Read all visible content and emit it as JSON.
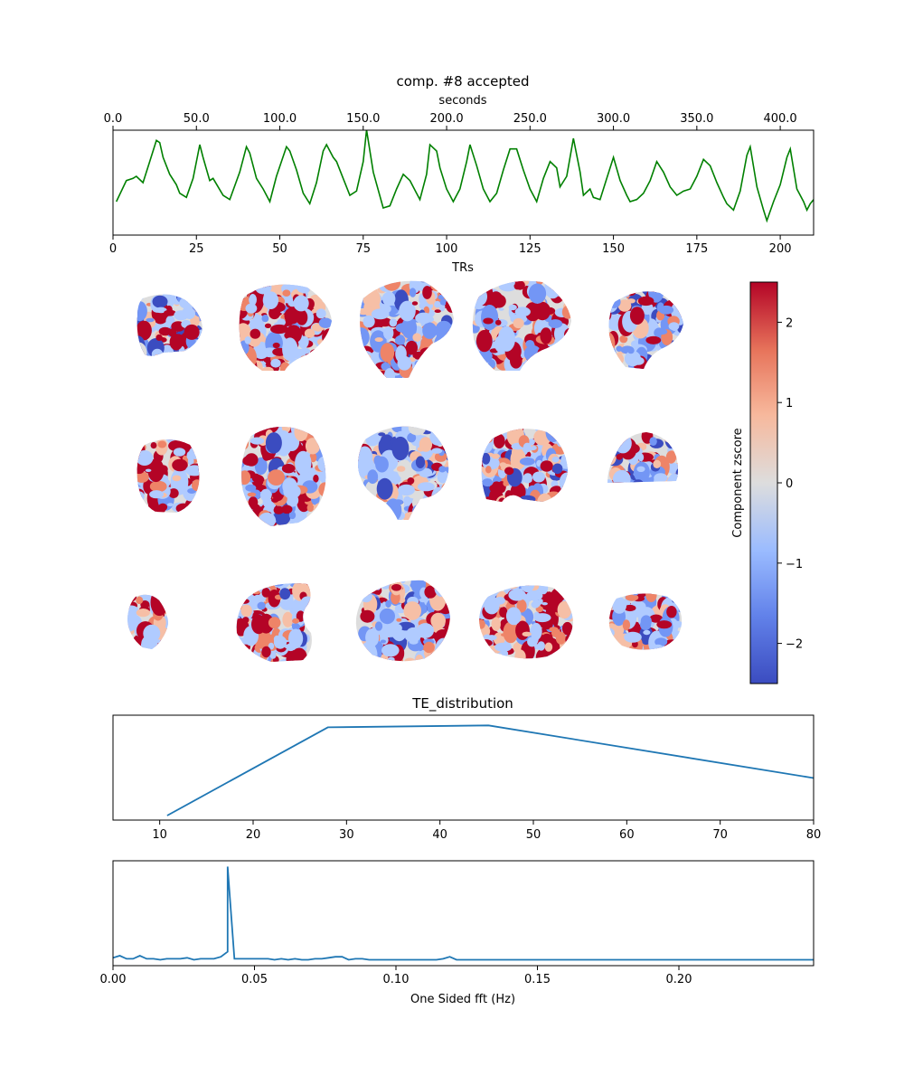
{
  "figure": {
    "title": "comp. #8   accepted"
  },
  "chart_data": [
    {
      "id": "timeseries",
      "type": "line",
      "title": "comp. #8   accepted",
      "xlabel": "TRs",
      "xlabel_top": "seconds",
      "xlim": [
        0,
        210
      ],
      "xlim_top": [
        0,
        420
      ],
      "x_ticks": [
        "0",
        "25",
        "50",
        "75",
        "100",
        "125",
        "150",
        "175",
        "200"
      ],
      "x_tick_values": [
        0,
        25,
        50,
        75,
        100,
        125,
        150,
        175,
        200
      ],
      "top_ticks": [
        "0.0",
        "50.0",
        "100.0",
        "150.0",
        "200.0",
        "250.0",
        "300.0",
        "350.0",
        "400.0"
      ],
      "top_tick_values": [
        0,
        50,
        100,
        150,
        200,
        250,
        300,
        350,
        400
      ],
      "y_ticks": "hidden",
      "ylim": [
        -2.4,
        2.4
      ],
      "color": "#008000",
      "peaks": [
        [
          1,
          -0.9
        ],
        [
          4,
          0.1
        ],
        [
          6,
          0.2
        ],
        [
          7,
          0.3
        ],
        [
          9,
          0.0
        ],
        [
          11,
          1.0
        ],
        [
          13,
          2.0
        ],
        [
          14,
          1.9
        ],
        [
          15,
          1.2
        ],
        [
          17,
          0.4
        ],
        [
          19,
          -0.1
        ],
        [
          20,
          -0.5
        ],
        [
          22,
          -0.7
        ],
        [
          24,
          0.2
        ],
        [
          26,
          1.8
        ],
        [
          27,
          1.2
        ],
        [
          29,
          0.1
        ],
        [
          30,
          0.2
        ],
        [
          33,
          -0.6
        ],
        [
          35,
          -0.8
        ],
        [
          38,
          0.5
        ],
        [
          40,
          1.7
        ],
        [
          41,
          1.4
        ],
        [
          43,
          0.2
        ],
        [
          45,
          -0.3
        ],
        [
          47,
          -0.9
        ],
        [
          49,
          0.3
        ],
        [
          52,
          1.7
        ],
        [
          53,
          1.5
        ],
        [
          55,
          0.6
        ],
        [
          57,
          -0.5
        ],
        [
          59,
          -1.0
        ],
        [
          61,
          0.0
        ],
        [
          63,
          1.5
        ],
        [
          64,
          1.8
        ],
        [
          66,
          1.2
        ],
        [
          67,
          1.0
        ],
        [
          69,
          0.2
        ],
        [
          71,
          -0.6
        ],
        [
          73,
          -0.4
        ],
        [
          75,
          1.0
        ],
        [
          76,
          2.5
        ],
        [
          78,
          0.5
        ],
        [
          81,
          -1.2
        ],
        [
          83,
          -1.1
        ],
        [
          85,
          -0.3
        ],
        [
          87,
          0.4
        ],
        [
          89,
          0.1
        ],
        [
          91,
          -0.5
        ],
        [
          92,
          -0.8
        ],
        [
          94,
          0.4
        ],
        [
          95,
          1.8
        ],
        [
          97,
          1.5
        ],
        [
          98,
          0.7
        ],
        [
          100,
          -0.3
        ],
        [
          102,
          -0.9
        ],
        [
          104,
          -0.3
        ],
        [
          106,
          1.0
        ],
        [
          107,
          1.8
        ],
        [
          109,
          0.8
        ],
        [
          111,
          -0.3
        ],
        [
          113,
          -0.9
        ],
        [
          115,
          -0.5
        ],
        [
          117,
          0.6
        ],
        [
          119,
          1.6
        ],
        [
          121,
          1.6
        ],
        [
          123,
          0.6
        ],
        [
          125,
          -0.3
        ],
        [
          127,
          -0.9
        ],
        [
          129,
          0.2
        ],
        [
          131,
          1.0
        ],
        [
          133,
          0.7
        ],
        [
          134,
          -0.2
        ],
        [
          136,
          0.3
        ],
        [
          138,
          2.1
        ],
        [
          140,
          0.5
        ],
        [
          141,
          -0.6
        ],
        [
          143,
          -0.3
        ],
        [
          144,
          -0.7
        ],
        [
          146,
          -0.8
        ],
        [
          148,
          0.2
        ],
        [
          150,
          1.2
        ],
        [
          152,
          0.1
        ],
        [
          154,
          -0.6
        ],
        [
          155,
          -0.9
        ],
        [
          157,
          -0.8
        ],
        [
          159,
          -0.5
        ],
        [
          161,
          0.1
        ],
        [
          163,
          1.0
        ],
        [
          165,
          0.5
        ],
        [
          167,
          -0.2
        ],
        [
          169,
          -0.6
        ],
        [
          171,
          -0.4
        ],
        [
          173,
          -0.3
        ],
        [
          175,
          0.3
        ],
        [
          177,
          1.1
        ],
        [
          179,
          0.8
        ],
        [
          181,
          0.0
        ],
        [
          183,
          -0.7
        ],
        [
          184,
          -1.0
        ],
        [
          186,
          -1.3
        ],
        [
          188,
          -0.4
        ],
        [
          190,
          1.3
        ],
        [
          191,
          1.7
        ],
        [
          193,
          -0.2
        ],
        [
          195,
          -1.3
        ],
        [
          196,
          -1.8
        ],
        [
          198,
          -0.9
        ],
        [
          200,
          -0.1
        ],
        [
          202,
          1.2
        ],
        [
          203,
          1.6
        ],
        [
          205,
          -0.3
        ],
        [
          207,
          -0.9
        ],
        [
          208,
          -1.3
        ],
        [
          209,
          -1.0
        ],
        [
          210,
          -0.8
        ]
      ]
    },
    {
      "id": "brain_maps",
      "type": "heatmap",
      "colorbar_label": "Component zscore",
      "colorbar_range": [
        -2.5,
        2.5
      ],
      "colorbar_ticks": [
        "−2",
        "−1",
        "0",
        "1",
        "2"
      ],
      "colorbar_tick_values": [
        -2,
        -1,
        0,
        1,
        2
      ],
      "colormap": [
        "#3b4cc0",
        "#7396f5",
        "#b0cbff",
        "#dddddd",
        "#f6bfa6",
        "#ee8468",
        "#b40426"
      ],
      "rows": [
        {
          "view": "sagittal",
          "panels": 5
        },
        {
          "view": "coronal",
          "panels": 5
        },
        {
          "view": "axial",
          "panels": 5
        }
      ]
    },
    {
      "id": "te_distribution",
      "type": "line",
      "title": "TE_distribution",
      "xlim": [
        5,
        80
      ],
      "x_ticks": [
        "10",
        "20",
        "30",
        "40",
        "50",
        "60",
        "70",
        "80"
      ],
      "x_tick_values": [
        10,
        20,
        30,
        40,
        50,
        60,
        70,
        80
      ],
      "y_ticks": "hidden",
      "ylim": [
        0,
        1.05
      ],
      "color": "#1f77b4",
      "points": [
        [
          10.8,
          0.0
        ],
        [
          28.0,
          0.94
        ],
        [
          45.2,
          0.96
        ],
        [
          80.0,
          0.4
        ]
      ]
    },
    {
      "id": "fft",
      "type": "line",
      "xlabel": "One Sided fft (Hz)",
      "xlim": [
        0,
        0.2476
      ],
      "x_ticks": [
        "0.00",
        "0.05",
        "0.10",
        "0.15",
        "0.20"
      ],
      "x_tick_values": [
        0,
        0.05,
        0.1,
        0.15,
        0.2
      ],
      "y_ticks": "hidden",
      "ylim": [
        0,
        1.0
      ],
      "color": "#1f77b4",
      "points": [
        [
          0.0,
          0.06
        ],
        [
          0.0024,
          0.08
        ],
        [
          0.0048,
          0.05
        ],
        [
          0.0071,
          0.05
        ],
        [
          0.0095,
          0.08
        ],
        [
          0.0119,
          0.05
        ],
        [
          0.0143,
          0.05
        ],
        [
          0.0167,
          0.04
        ],
        [
          0.019,
          0.05
        ],
        [
          0.0214,
          0.05
        ],
        [
          0.0238,
          0.05
        ],
        [
          0.0262,
          0.06
        ],
        [
          0.0286,
          0.04
        ],
        [
          0.031,
          0.05
        ],
        [
          0.0333,
          0.05
        ],
        [
          0.0357,
          0.05
        ],
        [
          0.0381,
          0.07
        ],
        [
          0.0405,
          0.12
        ],
        [
          0.0405,
          0.96
        ],
        [
          0.0429,
          0.05
        ],
        [
          0.0452,
          0.05
        ],
        [
          0.0476,
          0.05
        ],
        [
          0.05,
          0.05
        ],
        [
          0.0524,
          0.05
        ],
        [
          0.0548,
          0.05
        ],
        [
          0.0571,
          0.04
        ],
        [
          0.0595,
          0.05
        ],
        [
          0.0619,
          0.04
        ],
        [
          0.0643,
          0.05
        ],
        [
          0.0667,
          0.04
        ],
        [
          0.069,
          0.04
        ],
        [
          0.0714,
          0.05
        ],
        [
          0.0738,
          0.05
        ],
        [
          0.0762,
          0.06
        ],
        [
          0.0786,
          0.07
        ],
        [
          0.081,
          0.07
        ],
        [
          0.0833,
          0.04
        ],
        [
          0.0857,
          0.05
        ],
        [
          0.0881,
          0.05
        ],
        [
          0.0905,
          0.04
        ],
        [
          0.0929,
          0.04
        ],
        [
          0.0952,
          0.04
        ],
        [
          0.0976,
          0.04
        ],
        [
          0.1,
          0.04
        ],
        [
          0.1024,
          0.04
        ],
        [
          0.1048,
          0.04
        ],
        [
          0.1071,
          0.04
        ],
        [
          0.1095,
          0.04
        ],
        [
          0.1119,
          0.04
        ],
        [
          0.1143,
          0.04
        ],
        [
          0.1167,
          0.05
        ],
        [
          0.119,
          0.07
        ],
        [
          0.1214,
          0.04
        ],
        [
          0.1238,
          0.04
        ],
        [
          0.13,
          0.04
        ],
        [
          0.14,
          0.04
        ],
        [
          0.15,
          0.04
        ],
        [
          0.16,
          0.04
        ],
        [
          0.17,
          0.04
        ],
        [
          0.18,
          0.04
        ],
        [
          0.19,
          0.04
        ],
        [
          0.2,
          0.04
        ],
        [
          0.21,
          0.04
        ],
        [
          0.22,
          0.04
        ],
        [
          0.23,
          0.04
        ],
        [
          0.24,
          0.04
        ],
        [
          0.2476,
          0.04
        ]
      ]
    }
  ]
}
